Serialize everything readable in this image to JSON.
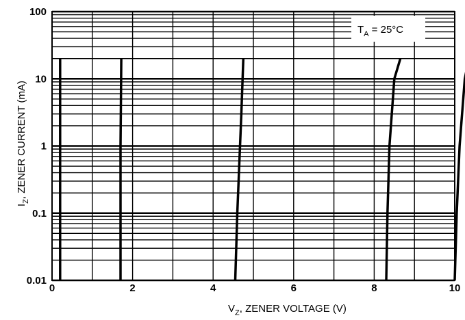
{
  "chart_data": {
    "type": "line",
    "xlabel": {
      "main": "V",
      "sub": "Z",
      "rest": ", ZENER VOLTAGE (V)"
    },
    "ylabel": {
      "main": "I",
      "sub": "Z",
      "rest": ", ZENER CURRENT (mA)"
    },
    "annotation": {
      "main": "T",
      "sub": "A",
      "rest": " = 25°C"
    },
    "x_scale": "linear",
    "y_scale": "log",
    "xlim": [
      0,
      10
    ],
    "ylim": [
      0.01,
      100
    ],
    "x_ticks": [
      "0",
      "2",
      "4",
      "6",
      "8",
      "10"
    ],
    "y_ticks": [
      "0.01",
      "0.1",
      "1",
      "10",
      "100"
    ],
    "grid": true,
    "line_color": "#000000",
    "series": [
      {
        "x": [
          0.2,
          0.2,
          0.2
        ],
        "y": [
          0.01,
          1,
          20
        ]
      },
      {
        "x": [
          1.7,
          1.7,
          1.72
        ],
        "y": [
          0.01,
          1,
          20
        ]
      },
      {
        "x": [
          4.55,
          4.6,
          4.7,
          4.75
        ],
        "y": [
          0.01,
          0.1,
          3,
          20
        ]
      },
      {
        "x": [
          8.3,
          8.33,
          8.38,
          8.5,
          8.65
        ],
        "y": [
          0.01,
          0.1,
          1,
          10,
          20
        ]
      },
      {
        "x": [
          10.0,
          10.05,
          10.12,
          10.25,
          10.35
        ],
        "y": [
          0.01,
          0.1,
          1,
          10,
          20
        ]
      }
    ]
  }
}
